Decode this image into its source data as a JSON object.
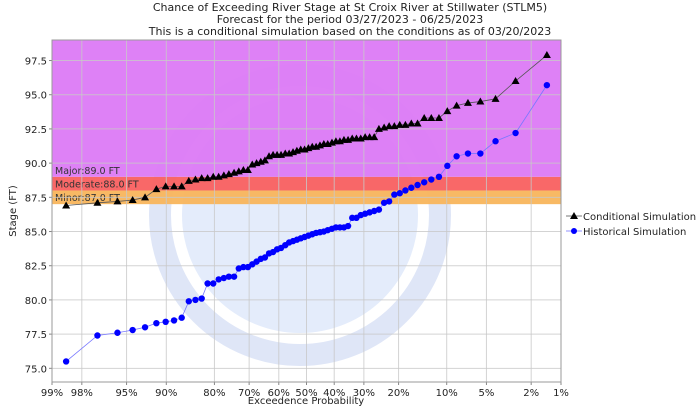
{
  "chart_data": {
    "type": "scatter",
    "title": [
      "Chance of Exceeding River Stage at St Croix River at Stillwater (STLM5)",
      "Forecast for the period 03/27/2023 - 06/25/2023",
      "This is a conditional simulation based on the conditions as of 03/20/2023"
    ],
    "xlabel": "Exceedence Probability",
    "ylabel": "Stage (FT)",
    "x_scale": "normal-probability",
    "xlim": [
      99,
      1
    ],
    "ylim": [
      74,
      99
    ],
    "x_ticks": [
      99,
      98,
      95,
      90,
      80,
      70,
      60,
      50,
      40,
      30,
      20,
      10,
      5,
      2,
      1
    ],
    "x_tick_labels": [
      "99%",
      "98%",
      "95%",
      "90%",
      "80%",
      "70%",
      "60%",
      "50%",
      "40%",
      "30%",
      "20%",
      "10%",
      "5%",
      "2%",
      "1%"
    ],
    "y_ticks": [
      75.0,
      77.5,
      80.0,
      82.5,
      85.0,
      87.5,
      90.0,
      92.5,
      95.0,
      97.5
    ],
    "y_tick_labels": [
      "75.0",
      "77.5",
      "80.0",
      "82.5",
      "85.0",
      "87.5",
      "90.0",
      "92.5",
      "95.0",
      "97.5"
    ],
    "grid": true,
    "legend_position": "right",
    "flood_categories": [
      {
        "name": "Minor",
        "label": "Minor:87.0 FT",
        "from": 87.0,
        "to": 88.0,
        "color": "#f8b55c"
      },
      {
        "name": "Moderate",
        "label": "Moderate:88.0 FT",
        "from": 88.0,
        "to": 89.0,
        "color": "#f96060"
      },
      {
        "name": "Major",
        "label": "Major:89.0 FT",
        "from": 89.0,
        "to": 99.0,
        "color": "#dc7af6"
      }
    ],
    "x": [
      98.6,
      97.2,
      95.8,
      94.4,
      93.0,
      91.5,
      90.1,
      88.7,
      87.3,
      85.9,
      84.5,
      83.1,
      81.7,
      80.3,
      78.9,
      77.5,
      76.1,
      74.6,
      73.2,
      71.8,
      70.4,
      69.0,
      67.6,
      66.2,
      64.8,
      63.4,
      62.0,
      60.6,
      59.2,
      57.7,
      56.3,
      54.9,
      53.5,
      52.1,
      50.7,
      49.3,
      47.9,
      46.5,
      45.1,
      43.7,
      42.3,
      40.8,
      39.4,
      38.0,
      36.6,
      35.2,
      33.8,
      32.4,
      31.0,
      29.6,
      28.2,
      26.8,
      25.4,
      23.9,
      22.5,
      21.1,
      19.7,
      18.3,
      16.9,
      15.5,
      14.1,
      12.7,
      11.3,
      9.9,
      8.5,
      7.0,
      5.6,
      4.2,
      2.8,
      1.4
    ],
    "series": [
      {
        "name": "Conditional Simulation",
        "marker": "triangle",
        "color": "#000000",
        "line_color": "#555555",
        "values": [
          86.9,
          87.1,
          87.2,
          87.3,
          87.5,
          88.1,
          88.3,
          88.3,
          88.3,
          88.7,
          88.8,
          88.9,
          88.9,
          89.0,
          89.0,
          89.1,
          89.2,
          89.3,
          89.4,
          89.5,
          89.5,
          89.9,
          90.0,
          90.1,
          90.2,
          90.5,
          90.6,
          90.6,
          90.6,
          90.7,
          90.7,
          90.8,
          90.9,
          91.0,
          91.0,
          91.1,
          91.2,
          91.2,
          91.3,
          91.4,
          91.4,
          91.5,
          91.6,
          91.6,
          91.7,
          91.7,
          91.8,
          91.8,
          91.8,
          91.9,
          91.9,
          91.9,
          92.5,
          92.6,
          92.7,
          92.7,
          92.8,
          92.8,
          92.9,
          92.9,
          93.3,
          93.3,
          93.3,
          93.8,
          94.2,
          94.4,
          94.5,
          94.7,
          96.0,
          97.9
        ]
      },
      {
        "name": "Historical Simulation",
        "marker": "circle",
        "color": "#0000ff",
        "line_color": "#7777ff",
        "values": [
          75.5,
          77.4,
          77.6,
          77.8,
          78.0,
          78.3,
          78.4,
          78.5,
          78.7,
          79.9,
          80.0,
          80.1,
          81.2,
          81.2,
          81.5,
          81.6,
          81.7,
          81.7,
          82.3,
          82.4,
          82.4,
          82.6,
          82.8,
          83.0,
          83.1,
          83.4,
          83.5,
          83.7,
          83.8,
          84.0,
          84.2,
          84.3,
          84.4,
          84.5,
          84.6,
          84.7,
          84.8,
          84.9,
          84.95,
          85.0,
          85.1,
          85.2,
          85.3,
          85.3,
          85.3,
          85.4,
          86.0,
          86.0,
          86.2,
          86.3,
          86.4,
          86.5,
          86.6,
          87.1,
          87.2,
          87.7,
          87.8,
          88.0,
          88.2,
          88.4,
          88.6,
          88.8,
          89.0,
          89.8,
          90.5,
          90.7,
          90.7,
          91.6,
          92.2,
          95.7
        ]
      }
    ]
  }
}
